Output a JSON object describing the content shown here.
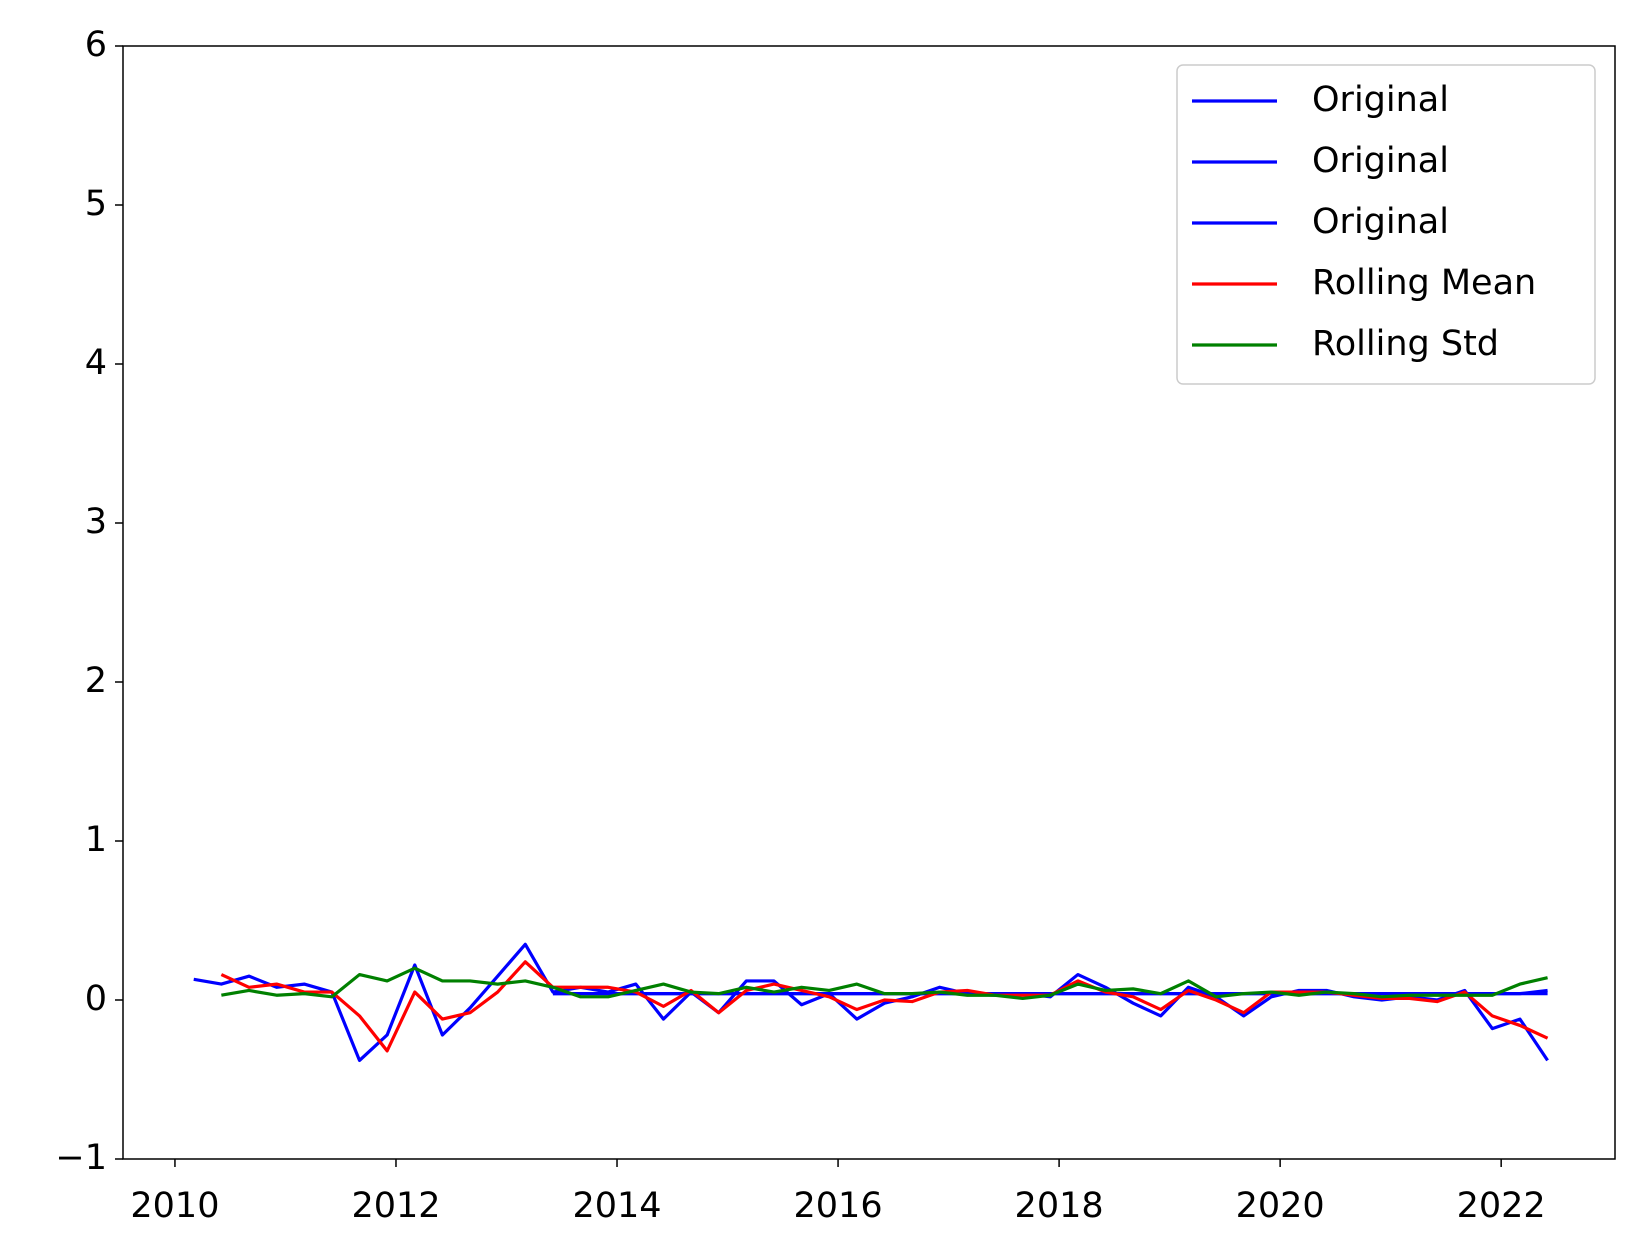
{
  "chart_data": {
    "type": "line",
    "x": [
      2010.17,
      2010.42,
      2010.67,
      2010.92,
      2011.17,
      2011.42,
      2011.67,
      2011.92,
      2012.17,
      2012.42,
      2012.67,
      2012.92,
      2013.17,
      2013.42,
      2013.67,
      2013.92,
      2014.17,
      2014.42,
      2014.67,
      2014.92,
      2015.17,
      2015.42,
      2015.67,
      2015.92,
      2016.17,
      2016.42,
      2016.67,
      2016.92,
      2017.17,
      2017.42,
      2017.67,
      2017.92,
      2018.17,
      2018.42,
      2018.67,
      2018.92,
      2019.17,
      2019.42,
      2019.67,
      2019.92,
      2020.17,
      2020.42,
      2020.67,
      2020.92,
      2021.17,
      2021.42,
      2021.67,
      2021.92,
      2022.17,
      2022.42
    ],
    "series": [
      {
        "name": "Original",
        "color": "#0000ff",
        "values": [
          0.13,
          0.1,
          0.15,
          0.08,
          0.1,
          0.05,
          -0.38,
          -0.22,
          0.22,
          -0.22,
          -0.05,
          0.15,
          0.35,
          0.05,
          0.08,
          0.05,
          0.1,
          -0.12,
          0.05,
          -0.08,
          0.12,
          0.12,
          -0.03,
          0.04,
          -0.12,
          -0.02,
          0.02,
          0.08,
          0.04,
          0.03,
          0.04,
          0.02,
          0.16,
          0.08,
          -0.02,
          -0.1,
          0.08,
          0.02,
          -0.1,
          0.02,
          0.06,
          0.06,
          0.02,
          0.0,
          0.02,
          0.0,
          0.06,
          -0.18,
          -0.12,
          -0.38
        ]
      },
      {
        "name": "Original",
        "color": "#0000ff",
        "values": [
          null,
          null,
          null,
          null,
          null,
          null,
          null,
          null,
          null,
          null,
          null,
          null,
          null,
          0.04,
          0.04,
          0.04,
          0.04,
          0.04,
          0.04,
          0.04,
          0.04,
          0.04,
          0.04,
          0.04,
          0.04,
          0.04,
          0.04,
          0.04,
          0.04,
          0.04,
          0.04,
          0.04,
          0.04,
          0.04,
          0.04,
          0.04,
          0.04,
          0.04,
          0.04,
          0.04,
          0.04,
          0.04,
          0.04,
          0.04,
          0.04,
          0.04,
          0.04,
          0.04,
          0.04,
          0.06
        ]
      },
      {
        "name": "Original",
        "color": "#0000ff",
        "values": [
          null,
          null,
          null,
          null,
          null,
          null,
          null,
          null,
          null,
          null,
          null,
          null,
          null,
          0.04,
          0.04,
          0.04,
          0.04,
          0.04,
          0.04,
          0.04,
          0.04,
          0.04,
          0.04,
          0.04,
          0.04,
          0.04,
          0.04,
          0.04,
          0.04,
          0.04,
          0.04,
          0.04,
          0.04,
          0.04,
          0.04,
          0.04,
          0.04,
          0.04,
          0.04,
          0.04,
          0.04,
          0.04,
          0.04,
          0.04,
          0.04,
          0.04,
          0.04,
          0.04,
          0.04,
          0.04
        ]
      },
      {
        "name": "Rolling Mean",
        "color": "#ff0000",
        "values": [
          null,
          0.16,
          0.08,
          0.1,
          0.05,
          0.05,
          -0.1,
          -0.32,
          0.05,
          -0.12,
          -0.08,
          0.05,
          0.24,
          0.08,
          0.08,
          0.08,
          0.05,
          -0.04,
          0.06,
          -0.08,
          0.06,
          0.1,
          0.06,
          0.02,
          -0.06,
          0.0,
          -0.01,
          0.05,
          0.06,
          0.03,
          0.03,
          0.03,
          0.12,
          0.05,
          0.02,
          -0.06,
          0.06,
          0.0,
          -0.08,
          0.05,
          0.05,
          0.05,
          0.03,
          0.01,
          0.01,
          -0.01,
          0.05,
          -0.1,
          -0.16,
          -0.24
        ]
      },
      {
        "name": "Rolling Std",
        "color": "#008000",
        "values": [
          null,
          0.03,
          0.06,
          0.03,
          0.04,
          0.02,
          0.16,
          0.12,
          0.2,
          0.12,
          0.12,
          0.1,
          0.12,
          0.08,
          0.02,
          0.02,
          0.06,
          0.1,
          0.05,
          0.04,
          0.08,
          0.05,
          0.08,
          0.06,
          0.1,
          0.04,
          0.04,
          0.05,
          0.03,
          0.03,
          0.01,
          0.03,
          0.1,
          0.06,
          0.07,
          0.04,
          0.12,
          0.02,
          0.04,
          0.05,
          0.03,
          0.05,
          0.04,
          0.02,
          0.03,
          0.03,
          0.03,
          0.03,
          0.1,
          0.14
        ]
      }
    ],
    "xlim": [
      2009.53,
      2023.03
    ],
    "xticks": [
      2010,
      2012,
      2014,
      2016,
      2018,
      2020,
      2022
    ],
    "ylim": [
      -1,
      6
    ],
    "yticks": [
      {
        "value": -1,
        "label": "−1"
      },
      0,
      1,
      2,
      3,
      4,
      5,
      6
    ],
    "legend": "upper right"
  }
}
